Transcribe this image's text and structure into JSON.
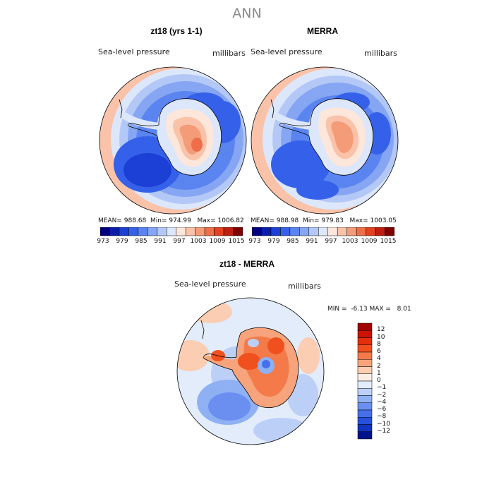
{
  "main_title": "ANN",
  "panels": [
    {
      "title": "zt18 (yrs 1-1)",
      "variable": "Sea-level pressure",
      "units": "millibars",
      "stats": {
        "mean_label": "MEAN=",
        "mean": "988.68",
        "min_label": "Min=",
        "min": "974.99",
        "max_label": "Max=",
        "max": "1006.82"
      }
    },
    {
      "title": "MERRA",
      "variable": "Sea-level pressure",
      "units": "millibars",
      "stats": {
        "mean_label": "MEAN=",
        "mean": "988.98",
        "min_label": "Min=",
        "min": "979.83",
        "max_label": "Max=",
        "max": "1003.05"
      }
    }
  ],
  "panel_colorbar": {
    "colors": [
      "#00007f",
      "#0a1ea8",
      "#1c3fd6",
      "#3561ea",
      "#5a84f0",
      "#86a6f3",
      "#b3c8f6",
      "#dde7fb",
      "#fde6da",
      "#f9c2a9",
      "#f49b78",
      "#ee6e49",
      "#e2421f",
      "#c01f10",
      "#7f0000"
    ],
    "labels": [
      "973",
      "979",
      "985",
      "991",
      "997",
      "1003",
      "1009",
      "1015"
    ]
  },
  "diff_panel": {
    "title": "zt18 - MERRA",
    "variable": "Sea-level pressure",
    "units": "millibars",
    "min_label": "MIN =",
    "min": "-6.13",
    "max_label": "MAX =",
    "max": "8.01"
  },
  "diff_colorbar": {
    "colors_top_to_bottom": [
      "#a10000",
      "#c91400",
      "#e52e0a",
      "#f0501e",
      "#f47a4a",
      "#f7a47c",
      "#fbcdb2",
      "#fdeee5",
      "#e2ecfb",
      "#bcd0f7",
      "#8fb0f3",
      "#6a8ff0",
      "#4670ea",
      "#2751dc",
      "#1234c0",
      "#00128a"
    ],
    "labels_top_to_bottom": [
      "12",
      "10",
      "8",
      "6",
      "4",
      "2",
      "1",
      "0",
      "−1",
      "−2",
      "−4",
      "−6",
      "−8",
      "−10",
      "−12"
    ]
  },
  "colors": {
    "title_gray": "#8a8a8a",
    "ocean_low": "#2f5fe3",
    "ocean_mid": "#8fb0f3",
    "high_red": "#e2421f"
  }
}
